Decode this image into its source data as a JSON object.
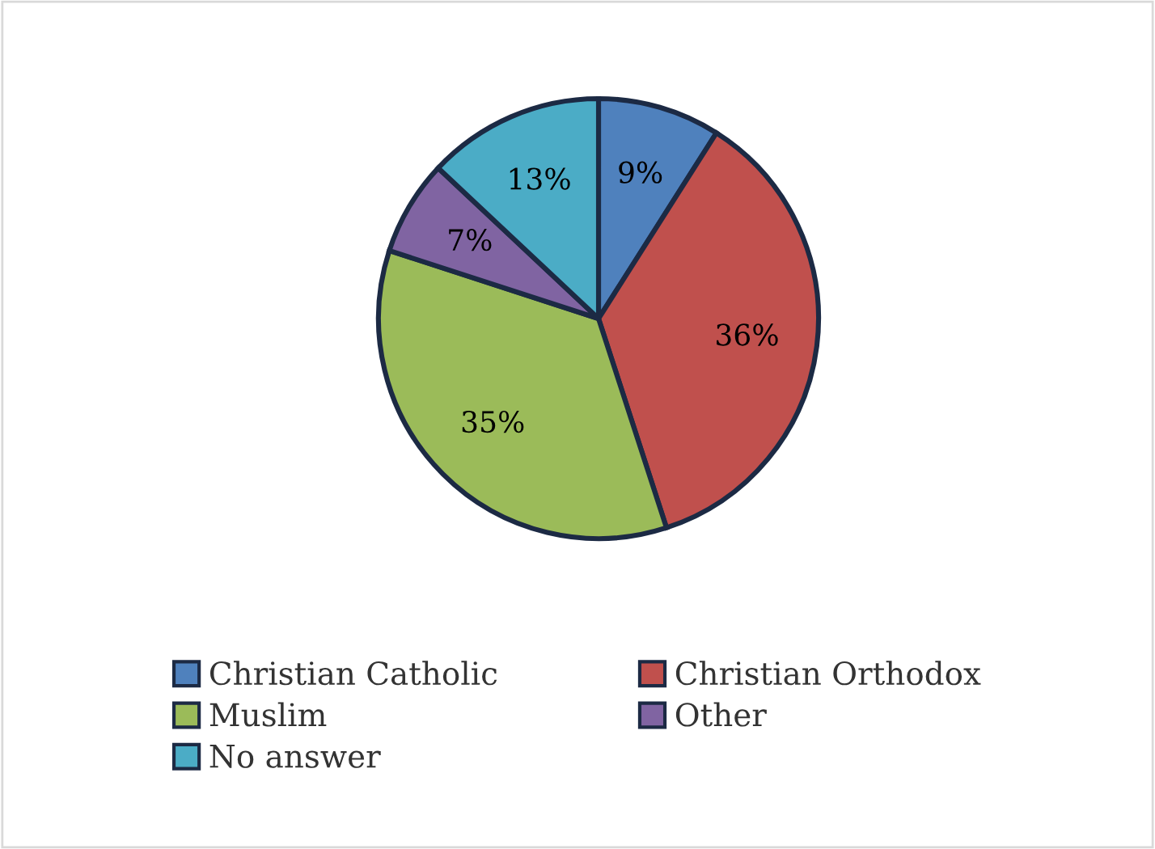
{
  "chart_data": {
    "type": "pie",
    "categories": [
      "Christian Catholic",
      "Christian Orthodox",
      "Muslim",
      "Other",
      "No answer"
    ],
    "values": [
      9,
      36,
      35,
      7,
      13
    ],
    "colors": [
      "#4f81bd",
      "#c0504d",
      "#9bbb59",
      "#8064a2",
      "#4bacc6"
    ],
    "value_labels": [
      "9%",
      "36%",
      "35%",
      "7%",
      "13%"
    ],
    "legend": "bottom"
  }
}
